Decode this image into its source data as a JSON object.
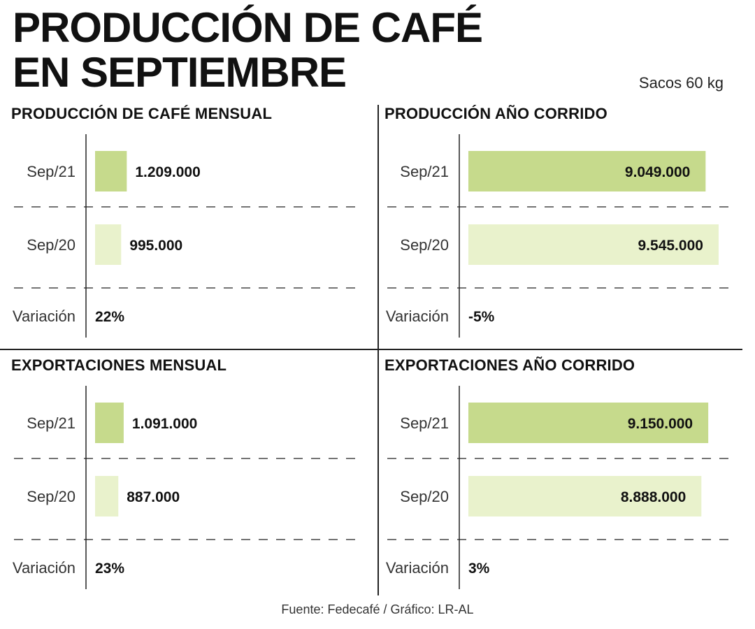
{
  "header": {
    "title_line1": "PRODUCCIÓN DE CAFÉ",
    "title_line2": "EN SEPTIEMBRE",
    "units": "Sacos 60 kg"
  },
  "footer": {
    "source": "Fuente: Fedecafé / Gráfico: LR-AL"
  },
  "colors": {
    "current": "#c6da8c",
    "previous": "#e9f2cc",
    "rule": "#222222",
    "text": "#111111"
  },
  "chart_data": [
    {
      "type": "bar",
      "title": "PRODUCCIÓN DE CAFÉ MENSUAL",
      "categories": [
        "Sep/21",
        "Sep/20"
      ],
      "values": [
        1209000,
        995000
      ],
      "value_labels": [
        "1.209.000",
        "995.000"
      ],
      "variation_label": "Variación",
      "variation": "22%",
      "xlim": [
        0,
        10000000
      ]
    },
    {
      "type": "bar",
      "title": "PRODUCCIÓN AÑO CORRIDO",
      "categories": [
        "Sep/21",
        "Sep/20"
      ],
      "values": [
        9049000,
        9545000
      ],
      "value_labels": [
        "9.049.000",
        "9.545.000"
      ],
      "variation_label": "Variación",
      "variation": "-5%",
      "xlim": [
        0,
        10000000
      ]
    },
    {
      "type": "bar",
      "title": "EXPORTACIONES MENSUAL",
      "categories": [
        "Sep/21",
        "Sep/20"
      ],
      "values": [
        1091000,
        887000
      ],
      "value_labels": [
        "1.091.000",
        "887.000"
      ],
      "variation_label": "Variación",
      "variation": "23%",
      "xlim": [
        0,
        10000000
      ]
    },
    {
      "type": "bar",
      "title": "EXPORTACIONES AÑO CORRIDO",
      "categories": [
        "Sep/21",
        "Sep/20"
      ],
      "values": [
        9150000,
        8888000
      ],
      "value_labels": [
        "9.150.000",
        "8.888.000"
      ],
      "variation_label": "Variación",
      "variation": "3%",
      "xlim": [
        0,
        10000000
      ]
    }
  ]
}
